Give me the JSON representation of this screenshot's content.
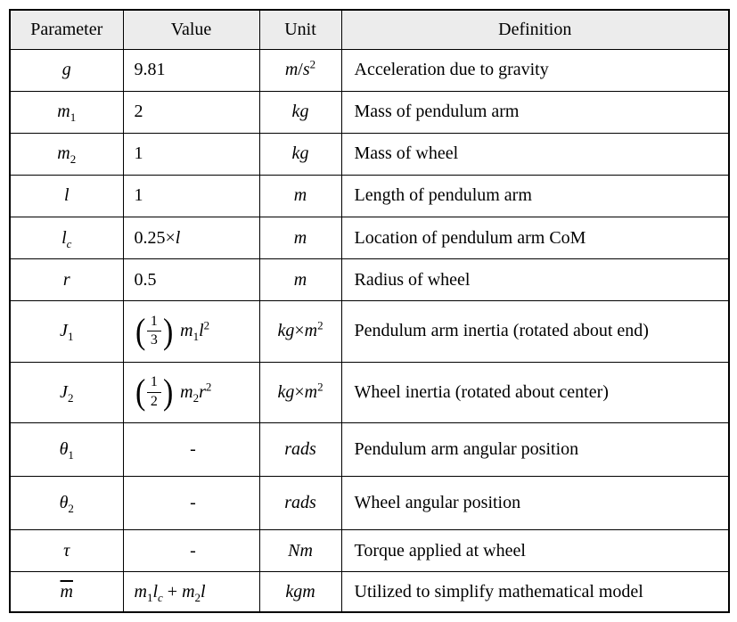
{
  "table": {
    "headers": [
      "Parameter",
      "Value",
      "Unit",
      "Definition"
    ],
    "rows": [
      {
        "parameter": "g",
        "value": {
          "math": "9.81"
        },
        "unit": "m/s^2",
        "definition": "Acceleration due to gravity"
      },
      {
        "parameter": "m_1",
        "value": {
          "math": "2"
        },
        "unit": "kg",
        "definition": "Mass of pendulum arm"
      },
      {
        "parameter": "m_2",
        "value": {
          "math": "1"
        },
        "unit": "kg",
        "definition": "Mass of wheel"
      },
      {
        "parameter": "l",
        "value": {
          "math": "1"
        },
        "unit": "m",
        "definition": "Length of pendulum arm"
      },
      {
        "parameter": "l_c",
        "value": {
          "math": "0.25×l"
        },
        "unit": "m",
        "definition": "Location of pendulum arm CoM"
      },
      {
        "parameter": "r",
        "value": {
          "math": "0.5"
        },
        "unit": "m",
        "definition": "Radius of wheel"
      },
      {
        "parameter": "J_1",
        "value": {
          "frac": {
            "num": "1",
            "den": "3"
          },
          "tail": "m_1l^2"
        },
        "unit": "kg×m^2",
        "definition": "Pendulum arm inertia (rotated about end)"
      },
      {
        "parameter": "J_2",
        "value": {
          "frac": {
            "num": "1",
            "den": "2"
          },
          "tail": "m_2r^2"
        },
        "unit": "kg×m^2",
        "definition": "Wheel inertia (rotated about center)"
      },
      {
        "parameter": "θ_1",
        "value": {
          "math": "-",
          "align": "center"
        },
        "unit": "rads",
        "definition": "Pendulum arm angular position"
      },
      {
        "parameter": "θ_2",
        "value": {
          "math": "-",
          "align": "center"
        },
        "unit": "rads",
        "definition": "Wheel angular position"
      },
      {
        "parameter": "τ",
        "value": {
          "math": "-",
          "align": "center"
        },
        "unit": "Nm",
        "definition": "Torque applied at wheel"
      },
      {
        "parameter": "~m",
        "value": {
          "math": "m_1l_c + m_2l"
        },
        "unit": "kgm",
        "definition": "Utilized to simplify mathematical model"
      }
    ]
  }
}
